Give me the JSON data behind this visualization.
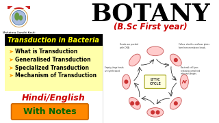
{
  "bg_color": "#ffffff",
  "title_text": "BOTANY",
  "title_color": "#000000",
  "subtitle_text": "(B.Sc First year)",
  "subtitle_color": "#cc0000",
  "banner_text": "Transduction in Bacteria",
  "banner_bg": "#000000",
  "banner_fg": "#ffff00",
  "bullet_color": "#ffcc00",
  "bullets": [
    "  What is Transduction",
    "  Generalised Transduction",
    "  Specialized Transduction",
    "  Mechanism of Transduction"
  ],
  "bullet_text_color": "#000000",
  "bullet_bg": "#ffffaa",
  "hindi_english_text": "Hindi/English",
  "hindi_english_color": "#cc0000",
  "with_notes_text": "With Notes",
  "with_notes_bg": "#ff8800",
  "with_notes_fg": "#006600",
  "university_name": "Mahatma Gandhi Kashi\nVidyapeeth",
  "university_color": "#000000",
  "left_panel_bg": "#ffffff",
  "right_panel_bg": "#ffffff",
  "diagram_cell_color": "#ffcccc",
  "diagram_cell_edge": "#cc6666"
}
